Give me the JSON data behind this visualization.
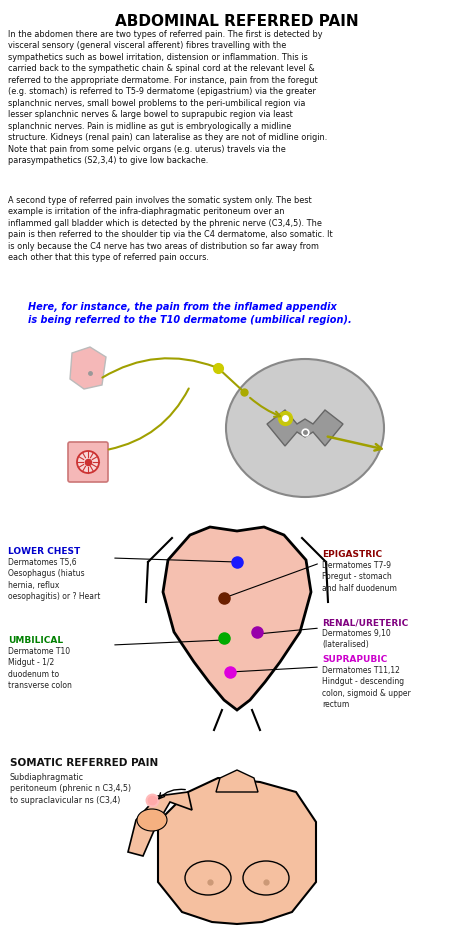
{
  "title": "ABDOMINAL REFERRED PAIN",
  "bg_color": "#ffffff",
  "title_color": "#000000",
  "title_fontsize": 11,
  "body_text_1": "In the abdomen there are two types of referred pain. The first is detected by\nvisceral sensory (general visceral afferent) fibres travelling with the\nsympathetics such as bowel irritation, distension or inflammation. This is\ncarried back to the sympathetic chain & spinal cord at the relevant level &\nreferred to the appropriate dermatome. For instance, pain from the foregut\n(e.g. stomach) is referred to T5-9 dermatome (epigastrium) via the greater\nsplanchnic nerves, small bowel problems to the peri-umbilical region via\nlesser splanchnic nerves & large bowel to suprapubic region via least\nsplanchnic nerves. Pain is midline as gut is embryologically a midline\nstructure. Kidneys (renal pain) can lateralise as they are not of midline origin.\nNote that pain from some pelvic organs (e.g. uterus) travels via the\nparasympathetics (S2,3,4) to give low backache.",
  "body_text_2": "A second type of referred pain involves the somatic system only. The best\nexample is irritation of the infra-diaphragmatic peritoneum over an\ninflammed gall bladder which is detected by the phrenic nerve (C3,4,5). The\npain is then referred to the shoulder tip via the C4 dermatome, also somatic. It\nis only because the C4 nerve has two areas of distribution so far away from\neach other that this type of referred pain occurs.",
  "highlight_text": "Here, for instance, the pain from the inflamed appendix\nis being referred to the T10 dermatome (umbilical region).",
  "highlight_color": "#0000ff",
  "lower_chest_label": "LOWER CHEST",
  "lower_chest_color": "#0000cc",
  "lower_chest_detail": "Dermatomes T5,6\nOesophagus (hiatus\nhernia, reflux\noesophagitis) or ? Heart",
  "lower_chest_dot": "#1a1aff",
  "epigastric_label": "EPIGASTRIC",
  "epigastric_color": "#8B0000",
  "epigastric_detail": "Dermatomes T7-9\nForegut - stomach\nand half duodenum",
  "epigastric_dot": "#6B2000",
  "umbilical_label": "UMBILICAL",
  "umbilical_color": "#008000",
  "umbilical_detail": "Dermatome T10\nMidgut - 1/2\nduodenum to\ntransverse colon",
  "umbilical_dot": "#00aa00",
  "renal_label": "RENAL/URETERIC",
  "renal_color": "#800080",
  "renal_detail": "Dermatomes 9,10\n(lateralised)",
  "renal_dot": "#9900aa",
  "suprapubic_label": "SUPRAPUBIC",
  "suprapubic_color": "#cc00cc",
  "suprapubic_detail": "Dermatomes T11,12\nHindgut - descending\ncolon, sigmoid & upper\nrectum",
  "suprapubic_dot": "#dd00dd",
  "somatic_label": "SOMATIC REFERRED PAIN",
  "somatic_detail": "Subdiaphragmatic\nperitoneum (phrenic n C3,4,5)\nto supraclavicular ns (C3,4)",
  "abdomen_fill": "#f5c0b0",
  "abdomen_line": "#000000",
  "olive": "#a0a000"
}
